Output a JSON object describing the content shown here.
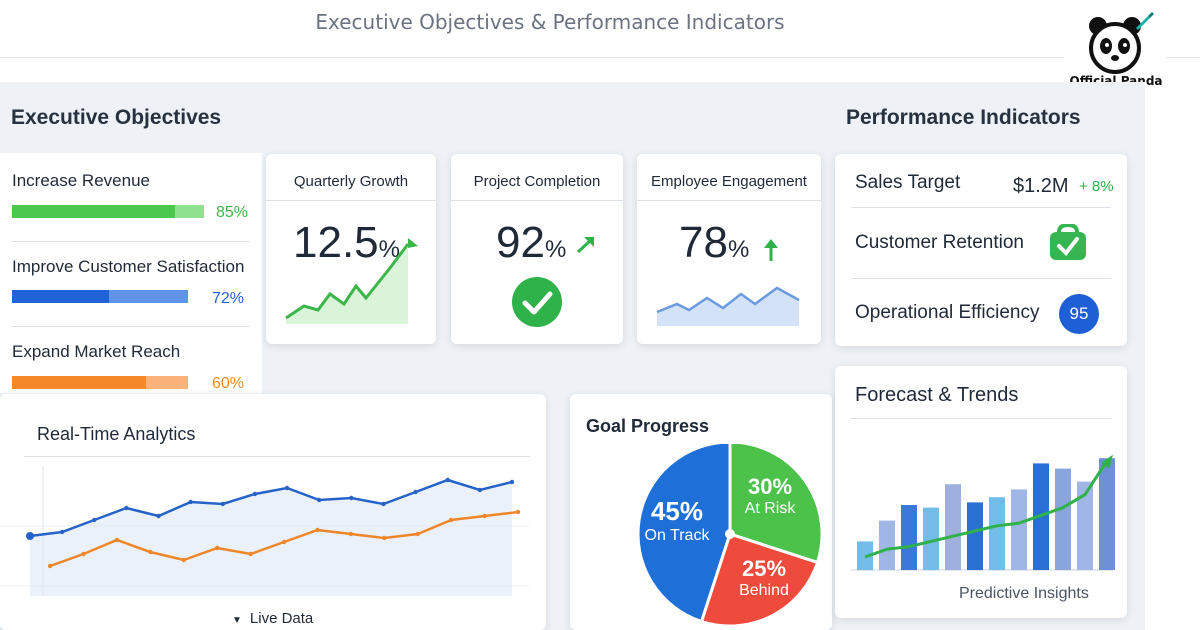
{
  "page": {
    "title": "Executive Objectives & Performance Indicators"
  },
  "logo": {
    "text": "Official Panda",
    "icon": "panda-icon"
  },
  "objectives": {
    "title": "Executive Objectives",
    "items": [
      {
        "label": "Increase Revenue",
        "percent_label": "85%",
        "progress": 0.85,
        "color": "#4cc94c"
      },
      {
        "label": "Improve Customer Satisfaction",
        "percent_label": "72%",
        "progress": 0.72,
        "color": "#1f63d6"
      },
      {
        "label": "Expand Market Reach",
        "percent_label": "60%",
        "progress": 0.6,
        "color": "#f5892a"
      }
    ]
  },
  "kpis": [
    {
      "title": "Quarterly Growth",
      "value": "12.5",
      "unit": "%",
      "icon": "arrow-up-right-icon",
      "color": "#3cb54a"
    },
    {
      "title": "Project Completion",
      "value": "92",
      "unit": "%",
      "icon": "check-circle-icon",
      "color": "#2fb24a"
    },
    {
      "title": "Employee Engagement",
      "value": "78",
      "unit": "%",
      "icon": "arrow-up-icon",
      "color": "#2fb24a"
    }
  ],
  "performance": {
    "title": "Performance Indicators",
    "sales_target": {
      "label": "Sales Target",
      "value": "$1.2M",
      "delta": "+ 8%"
    },
    "customer_retention": {
      "label": "Customer Retention",
      "icon": "retention-badge-icon"
    },
    "operational_efficiency": {
      "label": "Operational Efficiency",
      "badge": "95"
    }
  },
  "analytics": {
    "title": "Real-Time Analytics",
    "footer": "Live Data",
    "chart_data": {
      "type": "line",
      "series": [
        {
          "color": "#2563c9",
          "values": [
            30,
            32,
            38,
            44,
            40,
            47,
            46,
            51,
            54,
            48,
            49,
            46,
            52,
            58,
            53,
            57
          ]
        },
        {
          "color": "#f0862a",
          "values": [
            15,
            21,
            28,
            22,
            18,
            24,
            21,
            27,
            33,
            31,
            29,
            31,
            38,
            40,
            42
          ]
        }
      ]
    }
  },
  "goal_progress": {
    "title": "Goal Progress",
    "chart_data": {
      "type": "pie",
      "slices": [
        {
          "percent": "45%",
          "label": "On Track",
          "value": 45,
          "color": "#1f6fd9"
        },
        {
          "percent": "30%",
          "label": "At Risk",
          "value": 30,
          "color": "#4cc24a"
        },
        {
          "percent": "25%",
          "label": "Behind",
          "value": 25,
          "color": "#ef4b3c"
        }
      ]
    }
  },
  "forecast": {
    "title": "Forecast & Trends",
    "footer": "Predictive Insights",
    "chart_data": {
      "type": "bar",
      "bars": [
        {
          "value": 22,
          "color": "#72bde8"
        },
        {
          "value": 38,
          "color": "#9fb6e6"
        },
        {
          "value": 50,
          "color": "#3b78d8"
        },
        {
          "value": 48,
          "color": "#72bde8"
        },
        {
          "value": 66,
          "color": "#9fb0dd"
        },
        {
          "value": 52,
          "color": "#2a6fd3"
        },
        {
          "value": 56,
          "color": "#72bde8"
        },
        {
          "value": 62,
          "color": "#9fb6e6"
        },
        {
          "value": 82,
          "color": "#2a6fd3"
        },
        {
          "value": 78,
          "color": "#8aa4dc"
        },
        {
          "value": 68,
          "color": "#9fb6e6"
        },
        {
          "value": 86,
          "color": "#6f90d8"
        }
      ],
      "trend": [
        10,
        16,
        18,
        22,
        26,
        30,
        34,
        36,
        42,
        48,
        58,
        84
      ]
    }
  }
}
